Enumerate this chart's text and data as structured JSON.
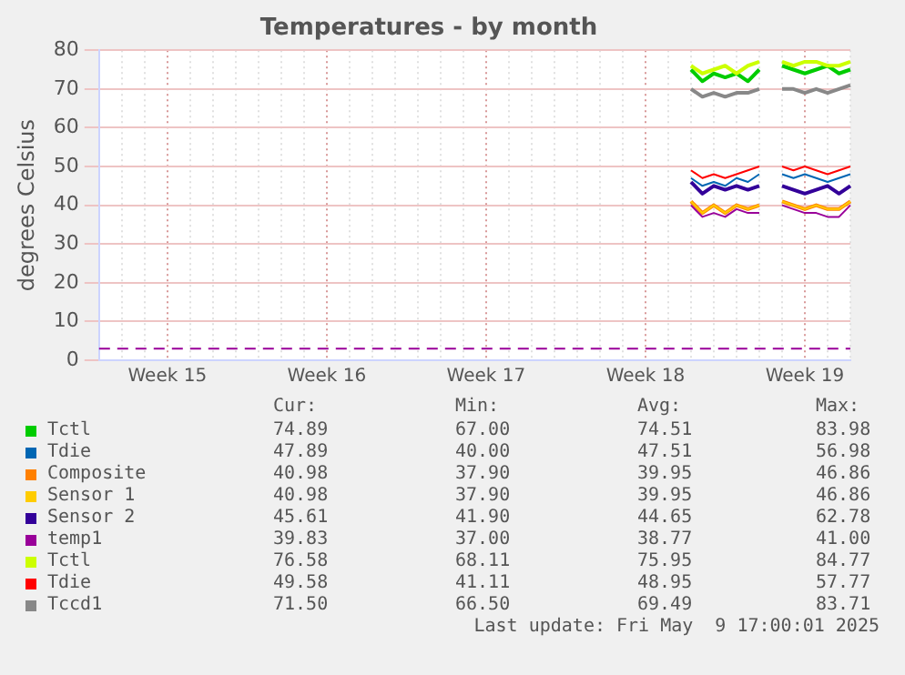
{
  "chart_data": {
    "type": "line",
    "title": "Temperatures - by month",
    "ylabel": "degrees Celsius",
    "categories": [
      null,
      null,
      null,
      null,
      null,
      null,
      "Week 15",
      null,
      null,
      null,
      null,
      null,
      null,
      null,
      null,
      null,
      null,
      null,
      null,
      null,
      "Week 16",
      null,
      null,
      null,
      null,
      null,
      null,
      null,
      null,
      null,
      null,
      null,
      null,
      null,
      "Week 17",
      null,
      null,
      null,
      null,
      null,
      null,
      null,
      null,
      null,
      null,
      null,
      null,
      null,
      "Week 18",
      null,
      null,
      null,
      null,
      null,
      null,
      null,
      null,
      null,
      null,
      null,
      null,
      null,
      "Week 19",
      null,
      null,
      null,
      null
    ],
    "ylim": [
      0,
      80
    ],
    "yticks": [
      0,
      10,
      20,
      30,
      40,
      50,
      60,
      70,
      80
    ],
    "grid": true,
    "legend": "bottom",
    "marker": "none",
    "line_style": "solid",
    "series": [
      {
        "name": "Tctl",
        "color": "#00cc00",
        "values": [
          null,
          null,
          null,
          null,
          null,
          null,
          null,
          null,
          null,
          null,
          null,
          null,
          null,
          null,
          null,
          null,
          null,
          null,
          null,
          null,
          null,
          null,
          null,
          null,
          null,
          null,
          null,
          null,
          null,
          null,
          null,
          null,
          null,
          null,
          null,
          null,
          null,
          null,
          null,
          null,
          null,
          null,
          null,
          null,
          null,
          null,
          null,
          null,
          null,
          null,
          null,
          null,
          75,
          72,
          74,
          73,
          74,
          72,
          75,
          null,
          76,
          75,
          74,
          75,
          76,
          74,
          75
        ]
      },
      {
        "name": "Tdie",
        "color": "#0066b3",
        "values": [
          null,
          null,
          null,
          null,
          null,
          null,
          null,
          null,
          null,
          null,
          null,
          null,
          null,
          null,
          null,
          null,
          null,
          null,
          null,
          null,
          null,
          null,
          null,
          null,
          null,
          null,
          null,
          null,
          null,
          null,
          null,
          null,
          null,
          null,
          null,
          null,
          null,
          null,
          null,
          null,
          null,
          null,
          null,
          null,
          null,
          null,
          null,
          null,
          null,
          null,
          null,
          null,
          47,
          45,
          46,
          45,
          47,
          46,
          48,
          null,
          48,
          47,
          48,
          47,
          46,
          47,
          48
        ]
      },
      {
        "name": "Composite",
        "color": "#ff8000",
        "values": [
          null,
          null,
          null,
          null,
          null,
          null,
          null,
          null,
          null,
          null,
          null,
          null,
          null,
          null,
          null,
          null,
          null,
          null,
          null,
          null,
          null,
          null,
          null,
          null,
          null,
          null,
          null,
          null,
          null,
          null,
          null,
          null,
          null,
          null,
          null,
          null,
          null,
          null,
          null,
          null,
          null,
          null,
          null,
          null,
          null,
          null,
          null,
          null,
          null,
          null,
          null,
          null,
          41,
          38,
          40,
          38,
          40,
          39,
          40,
          null,
          41,
          40,
          39,
          40,
          39,
          39,
          41
        ]
      },
      {
        "name": "Sensor 1",
        "color": "#ffcc00",
        "values": [
          null,
          null,
          null,
          null,
          null,
          null,
          null,
          null,
          null,
          null,
          null,
          null,
          null,
          null,
          null,
          null,
          null,
          null,
          null,
          null,
          null,
          null,
          null,
          null,
          null,
          null,
          null,
          null,
          null,
          null,
          null,
          null,
          null,
          null,
          null,
          null,
          null,
          null,
          null,
          null,
          null,
          null,
          null,
          null,
          null,
          null,
          null,
          null,
          null,
          null,
          null,
          null,
          41,
          38,
          40,
          38,
          40,
          39,
          40,
          null,
          41,
          40,
          39,
          40,
          39,
          39,
          41
        ]
      },
      {
        "name": "Sensor 2",
        "color": "#330099",
        "values": [
          null,
          null,
          null,
          null,
          null,
          null,
          null,
          null,
          null,
          null,
          null,
          null,
          null,
          null,
          null,
          null,
          null,
          null,
          null,
          null,
          null,
          null,
          null,
          null,
          null,
          null,
          null,
          null,
          null,
          null,
          null,
          null,
          null,
          null,
          null,
          null,
          null,
          null,
          null,
          null,
          null,
          null,
          null,
          null,
          null,
          null,
          null,
          null,
          null,
          null,
          null,
          null,
          46,
          43,
          45,
          44,
          45,
          44,
          45,
          null,
          45,
          44,
          43,
          44,
          45,
          43,
          45
        ]
      },
      {
        "name": "temp1",
        "color": "#990099",
        "values": [
          null,
          null,
          null,
          null,
          null,
          null,
          null,
          null,
          null,
          null,
          null,
          null,
          null,
          null,
          null,
          null,
          null,
          null,
          null,
          null,
          null,
          null,
          null,
          null,
          null,
          null,
          null,
          null,
          null,
          null,
          null,
          null,
          null,
          null,
          null,
          null,
          null,
          null,
          null,
          null,
          null,
          null,
          null,
          null,
          null,
          null,
          null,
          null,
          null,
          null,
          null,
          null,
          40,
          37,
          38,
          37,
          39,
          38,
          38,
          null,
          40,
          39,
          38,
          38,
          37,
          37,
          40
        ]
      },
      {
        "name": "Tctl",
        "color": "#ccff00",
        "values": [
          null,
          null,
          null,
          null,
          null,
          null,
          null,
          null,
          null,
          null,
          null,
          null,
          null,
          null,
          null,
          null,
          null,
          null,
          null,
          null,
          null,
          null,
          null,
          null,
          null,
          null,
          null,
          null,
          null,
          null,
          null,
          null,
          null,
          null,
          null,
          null,
          null,
          null,
          null,
          null,
          null,
          null,
          null,
          null,
          null,
          null,
          null,
          null,
          null,
          null,
          null,
          null,
          76,
          74,
          75,
          76,
          74,
          76,
          77,
          null,
          77,
          76,
          77,
          77,
          76,
          76,
          77
        ]
      },
      {
        "name": "Tdie",
        "color": "#ff0000",
        "values": [
          null,
          null,
          null,
          null,
          null,
          null,
          null,
          null,
          null,
          null,
          null,
          null,
          null,
          null,
          null,
          null,
          null,
          null,
          null,
          null,
          null,
          null,
          null,
          null,
          null,
          null,
          null,
          null,
          null,
          null,
          null,
          null,
          null,
          null,
          null,
          null,
          null,
          null,
          null,
          null,
          null,
          null,
          null,
          null,
          null,
          null,
          null,
          null,
          null,
          null,
          null,
          null,
          49,
          47,
          48,
          47,
          48,
          49,
          50,
          null,
          50,
          49,
          50,
          49,
          48,
          49,
          50
        ]
      },
      {
        "name": "Tccd1",
        "color": "#888888",
        "values": [
          null,
          null,
          null,
          null,
          null,
          null,
          null,
          null,
          null,
          null,
          null,
          null,
          null,
          null,
          null,
          null,
          null,
          null,
          null,
          null,
          null,
          null,
          null,
          null,
          null,
          null,
          null,
          null,
          null,
          null,
          null,
          null,
          null,
          null,
          null,
          null,
          null,
          null,
          null,
          null,
          null,
          null,
          null,
          null,
          null,
          null,
          null,
          null,
          null,
          null,
          null,
          null,
          70,
          68,
          69,
          68,
          69,
          69,
          70,
          null,
          70,
          70,
          69,
          70,
          69,
          70,
          71
        ]
      }
    ],
    "ref_lines": [
      {
        "axis": "y",
        "value": 3,
        "color": "#990099",
        "line_style": "dashed"
      }
    ],
    "annotations": [
      "Cur:",
      "Min:",
      "Avg:",
      "Max:",
      "74.89",
      "67.00",
      "74.51",
      "83.98",
      "47.89",
      "40.00",
      "47.51",
      "56.98",
      "40.98",
      "37.90",
      "39.95",
      "46.86",
      "40.98",
      "37.90",
      "39.95",
      "46.86",
      "45.61",
      "41.90",
      "44.65",
      "62.78",
      "39.83",
      "37.00",
      "38.77",
      "41.00",
      "76.58",
      "68.11",
      "75.95",
      "84.77",
      "49.58",
      "41.11",
      "48.95",
      "57.77",
      "71.50",
      "66.50",
      "69.49",
      "83.71",
      "Last update: Fri May  9 17:00:01 2025"
    ]
  }
}
